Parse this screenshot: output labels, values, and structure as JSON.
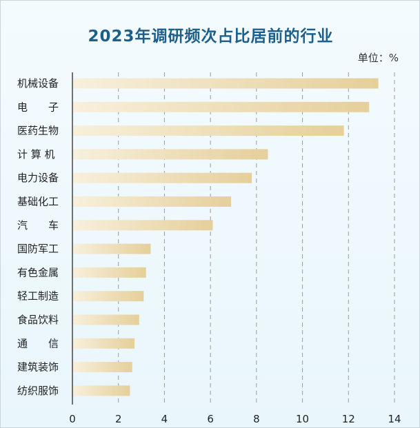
{
  "chart_data": {
    "type": "bar",
    "orientation": "horizontal",
    "title": "2023年调研频次占比居前的行业",
    "unit_label": "单位：%",
    "categories": [
      "机械设备",
      "电　子",
      "医药生物",
      "计算机",
      "电力设备",
      "基础化工",
      "汽　车",
      "国防军工",
      "有色金属",
      "轻工制造",
      "食品饮料",
      "通　信",
      "建筑装饰",
      "纺织服饰"
    ],
    "category_display": [
      "机械设备",
      "电　　子",
      "医药生物",
      "计 算 机",
      "电力设备",
      "基础化工",
      "汽　　车",
      "国防军工",
      "有色金属",
      "轻工制造",
      "食品饮料",
      "通　　信",
      "建筑装饰",
      "纺织服饰"
    ],
    "values": [
      13.3,
      12.9,
      11.8,
      8.5,
      7.8,
      6.9,
      6.1,
      3.4,
      3.2,
      3.1,
      2.9,
      2.7,
      2.6,
      2.5
    ],
    "xlim": [
      0,
      14
    ],
    "xticks": [
      0,
      2,
      4,
      6,
      8,
      10,
      12,
      14
    ],
    "grid": "dashed-vertical",
    "colors": {
      "bar_start": "#f8f0dd",
      "bar_end": "#e5cf9a",
      "axis": "#444444",
      "grid": "#9a9a9a",
      "title": "#1b5f8c"
    }
  }
}
